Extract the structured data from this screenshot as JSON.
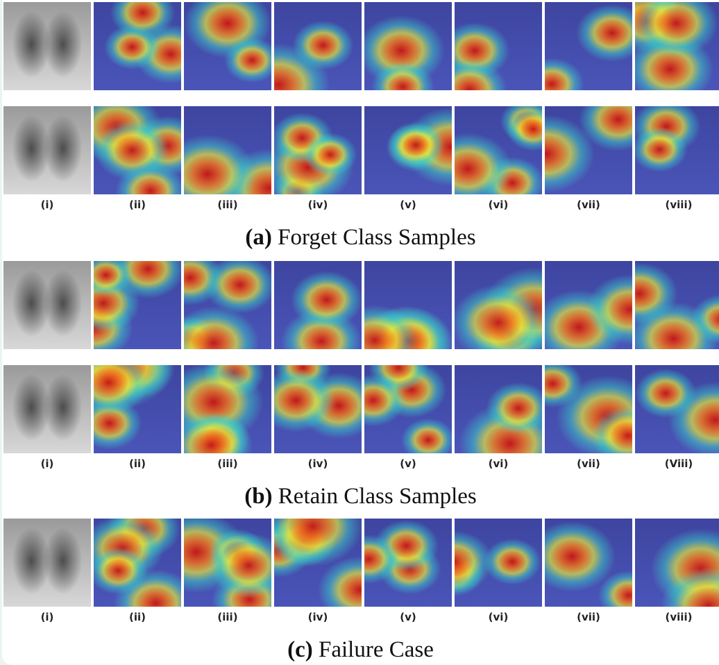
{
  "sections": [
    {
      "label": "(a)",
      "caption": "Forget Class Samples",
      "rows": 2,
      "columns": [
        "(i)",
        "(ii)",
        "(iii)",
        "(iv)",
        "(v)",
        "(vi)",
        "(vii)",
        "(viii)"
      ]
    },
    {
      "label": "(b)",
      "caption": "Retain Class Samples",
      "rows": 2,
      "columns": [
        "(i)",
        "(ii)",
        "(iii)",
        "(iv)",
        "(v)",
        "(vi)",
        "(vii)",
        "(Viii)"
      ]
    },
    {
      "label": "(c)",
      "caption": "Failure Case",
      "rows": 1,
      "columns": [
        "(i)",
        "(ii)",
        "(iii)",
        "(iv)",
        "(v)",
        "(vi)",
        "(vii)",
        "(viii)"
      ]
    }
  ]
}
